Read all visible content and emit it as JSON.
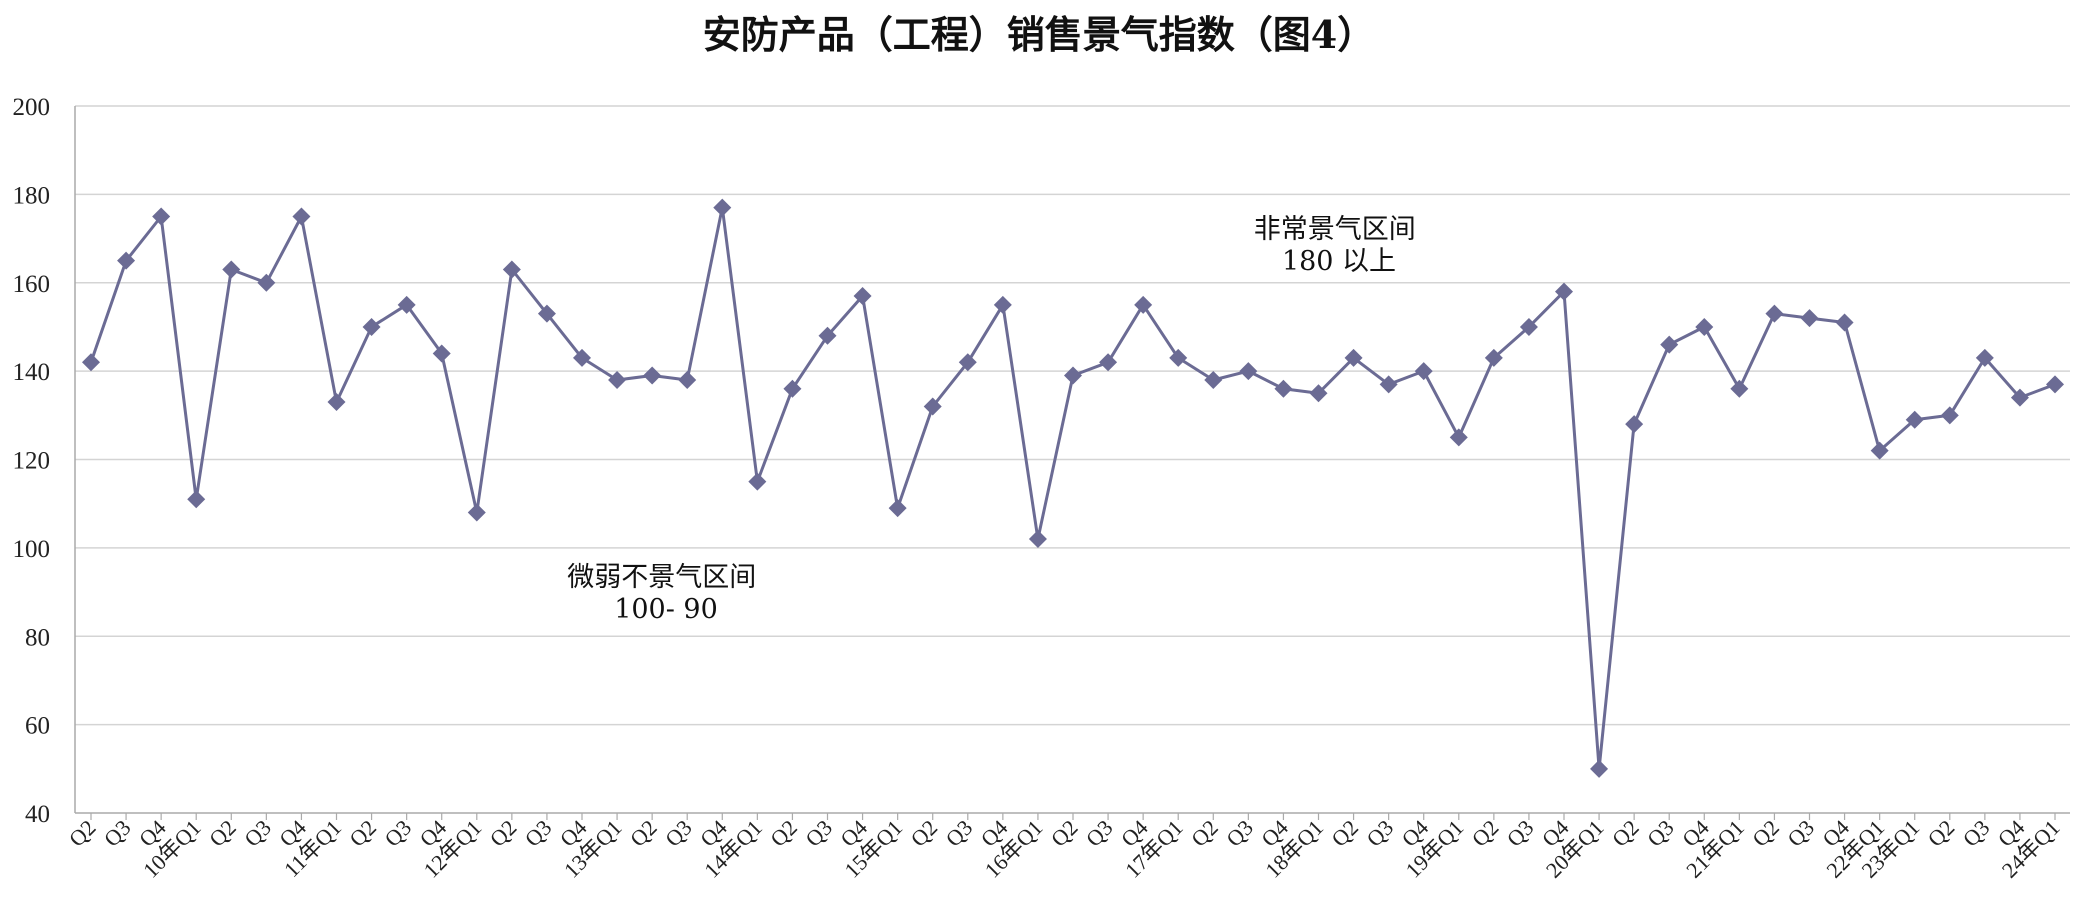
{
  "chart_data": {
    "type": "line",
    "title": "安防产品（工程）销售景气指数（图4）",
    "xlabel": "",
    "ylabel": "",
    "ylim": [
      40,
      200
    ],
    "yticks": [
      40,
      60,
      80,
      100,
      120,
      140,
      160,
      180,
      200
    ],
    "grid": true,
    "legend": "none",
    "colors": {
      "series": "#6b6b94",
      "grid": "#d4d4d4",
      "axis": "#aaaaaa"
    },
    "categories": [
      "Q2",
      "Q3",
      "Q4",
      "10年Q1",
      "Q2",
      "Q3",
      "Q4",
      "11年Q1",
      "Q2",
      "Q3",
      "Q4",
      "12年Q1",
      "Q2",
      "Q3",
      "Q4",
      "13年Q1",
      "Q2",
      "Q3",
      "Q4",
      "14年Q1",
      "Q2",
      "Q3",
      "Q4",
      "15年Q1",
      "Q2",
      "Q3",
      "Q4",
      "16年Q1",
      "Q2",
      "Q3",
      "Q4",
      "17年Q1",
      "Q2",
      "Q3",
      "Q4",
      "18年Q1",
      "Q2",
      "Q3",
      "Q4",
      "19年Q1",
      "Q2",
      "Q3",
      "Q4",
      "20年Q1",
      "Q2",
      "Q3",
      "Q4",
      "21年Q1",
      "Q2",
      "Q3",
      "Q4",
      "22年Q1",
      "23年Q1",
      "Q2",
      "Q3",
      "Q4",
      "24年Q1"
    ],
    "series": [
      {
        "values": [
          142,
          165,
          175,
          111,
          163,
          160,
          175,
          133,
          150,
          155,
          144,
          108,
          163,
          153,
          143,
          138,
          139,
          138,
          177,
          115,
          136,
          148,
          157,
          109,
          132,
          142,
          155,
          102,
          139,
          142,
          155,
          143,
          138,
          140,
          136,
          135,
          143,
          137,
          140,
          125,
          143,
          150,
          158,
          50,
          128,
          146,
          150,
          136,
          153,
          152,
          151,
          122,
          129,
          130,
          143,
          134,
          137
        ]
      }
    ],
    "annotations": [
      {
        "lines": [
          "非常景气区间",
          "180 以上"
        ]
      },
      {
        "lines": [
          "微弱不景气区间",
          "100- 90"
        ]
      }
    ]
  }
}
